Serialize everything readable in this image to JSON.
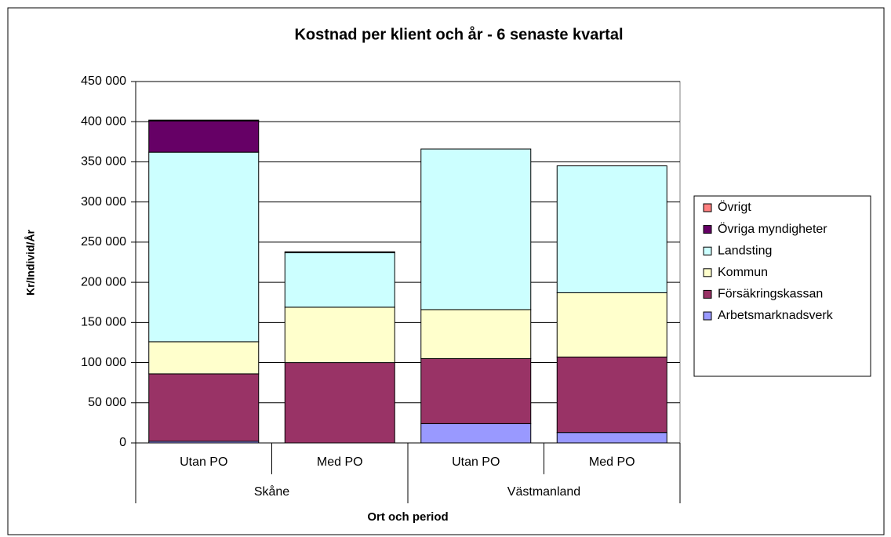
{
  "chart_data": {
    "type": "stacked_bar",
    "title": "Kostnad per klient och år - 6 senaste kvartal",
    "y_label": "Kr/Individ/År",
    "x_label": "Ort och period",
    "categories": [
      "Utan PO",
      "Med PO",
      "Utan PO",
      "Med PO"
    ],
    "groups": [
      "Skåne",
      "Västmanland"
    ],
    "series": [
      {
        "name": "Arbetsmarknadsverk",
        "color": "#9999ff",
        "values": [
          2000,
          0,
          24000,
          13000
        ]
      },
      {
        "name": "Försäkringskassan",
        "color": "#993366",
        "values": [
          84000,
          100000,
          81000,
          94000
        ]
      },
      {
        "name": "Kommun",
        "color": "#ffffcc",
        "values": [
          40000,
          69000,
          61000,
          80000
        ]
      },
      {
        "name": "Landsting",
        "color": "#ccffff",
        "values": [
          236000,
          68000,
          200000,
          158000
        ]
      },
      {
        "name": "Övriga myndigheter",
        "color": "#660066",
        "values": [
          39000,
          1000,
          0,
          0
        ]
      },
      {
        "name": "Övrigt",
        "color": "#ff8080",
        "values": [
          1000,
          0,
          0,
          0
        ]
      }
    ],
    "ylim": [
      0,
      450000
    ],
    "yticks": [
      0,
      {
        "value": 50000,
        "label": "50 000"
      },
      {
        "value": 100000,
        "label": "100 000"
      },
      {
        "value": 150000,
        "label": "150 000"
      },
      {
        "value": 200000,
        "label": "200 000"
      },
      {
        "value": 250000,
        "label": "250 000"
      },
      {
        "value": 300000,
        "label": "300 000"
      },
      {
        "value": 350000,
        "label": "350 000"
      },
      {
        "value": 400000,
        "label": "400 000"
      },
      {
        "value": 450000,
        "label": "450 000"
      }
    ],
    "grid": true,
    "legend": "right"
  }
}
